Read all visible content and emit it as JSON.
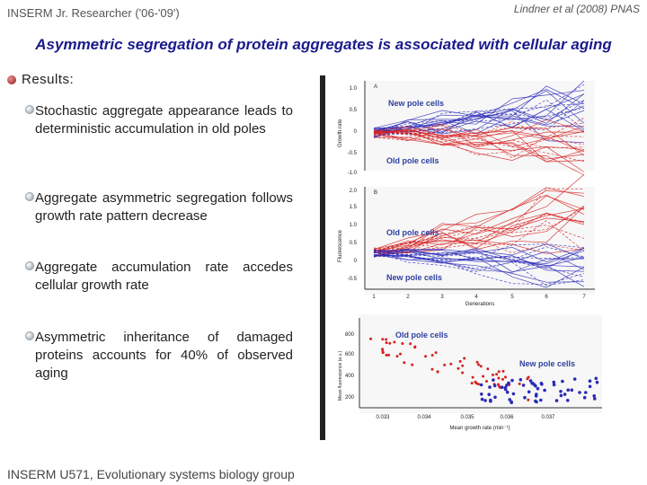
{
  "header": {
    "left": "INSERM Jr. Researcher ('06-'09')",
    "right": "Lindner et al (2008) PNAS"
  },
  "title": "Asymmetric segregation of protein aggregates is associated with cellular aging",
  "results_label": "Results:",
  "bullets": [
    {
      "text": "Stochastic aggregate appearance leads to deterministic accumulation in old poles"
    },
    {
      "text": "Aggregate asymmetric segregation follows growth rate pattern decrease"
    },
    {
      "text": "Aggregate accumulation rate accedes cellular growth rate"
    },
    {
      "text": "Asymmetric inheritance of damaged proteins accounts for 40% of observed aging"
    }
  ],
  "footer": "INSERM U571, Evolutionary systems biology group",
  "figure": {
    "panel_a": {
      "letter": "A",
      "ylabel": "Growth rate",
      "yticks": [
        "1.0",
        "0.5",
        "0",
        "-0.5",
        "-1.0"
      ],
      "label_new": "New pole cells",
      "label_old": "Old pole cells"
    },
    "panel_b": {
      "letter": "B",
      "ylabel": "Fluorescence",
      "yticks": [
        "2.0",
        "1.5",
        "1.0",
        "0.5",
        "0",
        "-0.5"
      ],
      "label_old": "Old pole cells",
      "label_new": "New pole cells",
      "xticks": [
        "1",
        "2",
        "3",
        "4",
        "5",
        "6",
        "7"
      ],
      "xlabel": "Generations"
    },
    "panel_c": {
      "ylabel": "Mean fluorescence (a.u.)",
      "yticks": [
        "800",
        "600",
        "400",
        "200"
      ],
      "xticks": [
        "0.033",
        "0.034",
        "0.035",
        "0.036",
        "0.037"
      ],
      "xlabel": "Mean growth rate (min⁻¹)",
      "label_old": "Old pole cells",
      "label_new": "New pole cells"
    },
    "colors": {
      "old": "#d62020",
      "new": "#2a2ab8",
      "label": "#3040a0"
    }
  }
}
